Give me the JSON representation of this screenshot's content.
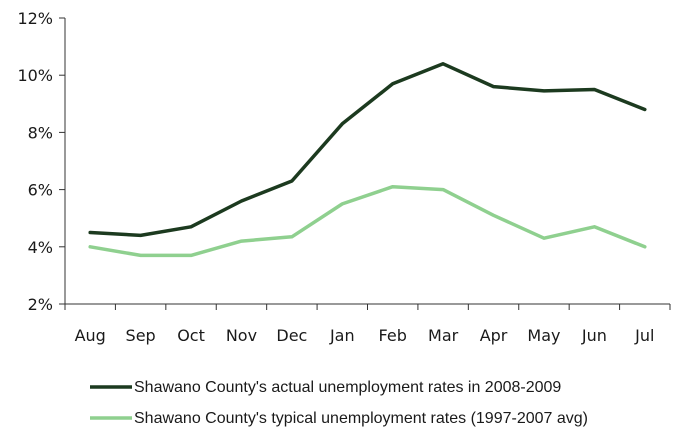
{
  "chart_data": {
    "type": "line",
    "categories": [
      "Aug",
      "Sep",
      "Oct",
      "Nov",
      "Dec",
      "Jan",
      "Feb",
      "Mar",
      "Apr",
      "May",
      "Jun",
      "Jul"
    ],
    "series": [
      {
        "name": "Shawano County's actual unemployment rates in 2008-2009",
        "color": "#1c3a1f",
        "values": [
          4.5,
          4.4,
          4.7,
          5.6,
          6.3,
          8.3,
          9.7,
          10.4,
          9.6,
          9.45,
          9.5,
          8.8
        ]
      },
      {
        "name": "Shawano County's typical unemployment rates (1997-2007 avg)",
        "color": "#8fd08f",
        "values": [
          4.0,
          3.7,
          3.7,
          4.2,
          4.35,
          5.5,
          6.1,
          6.0,
          5.1,
          4.3,
          4.7,
          4.0
        ]
      }
    ],
    "yticks": [
      "2%",
      "4%",
      "6%",
      "8%",
      "10%",
      "12%"
    ],
    "ylim": [
      2,
      12
    ],
    "title": "",
    "xlabel": "",
    "ylabel": "",
    "grid": false,
    "legend_position": "bottom"
  }
}
